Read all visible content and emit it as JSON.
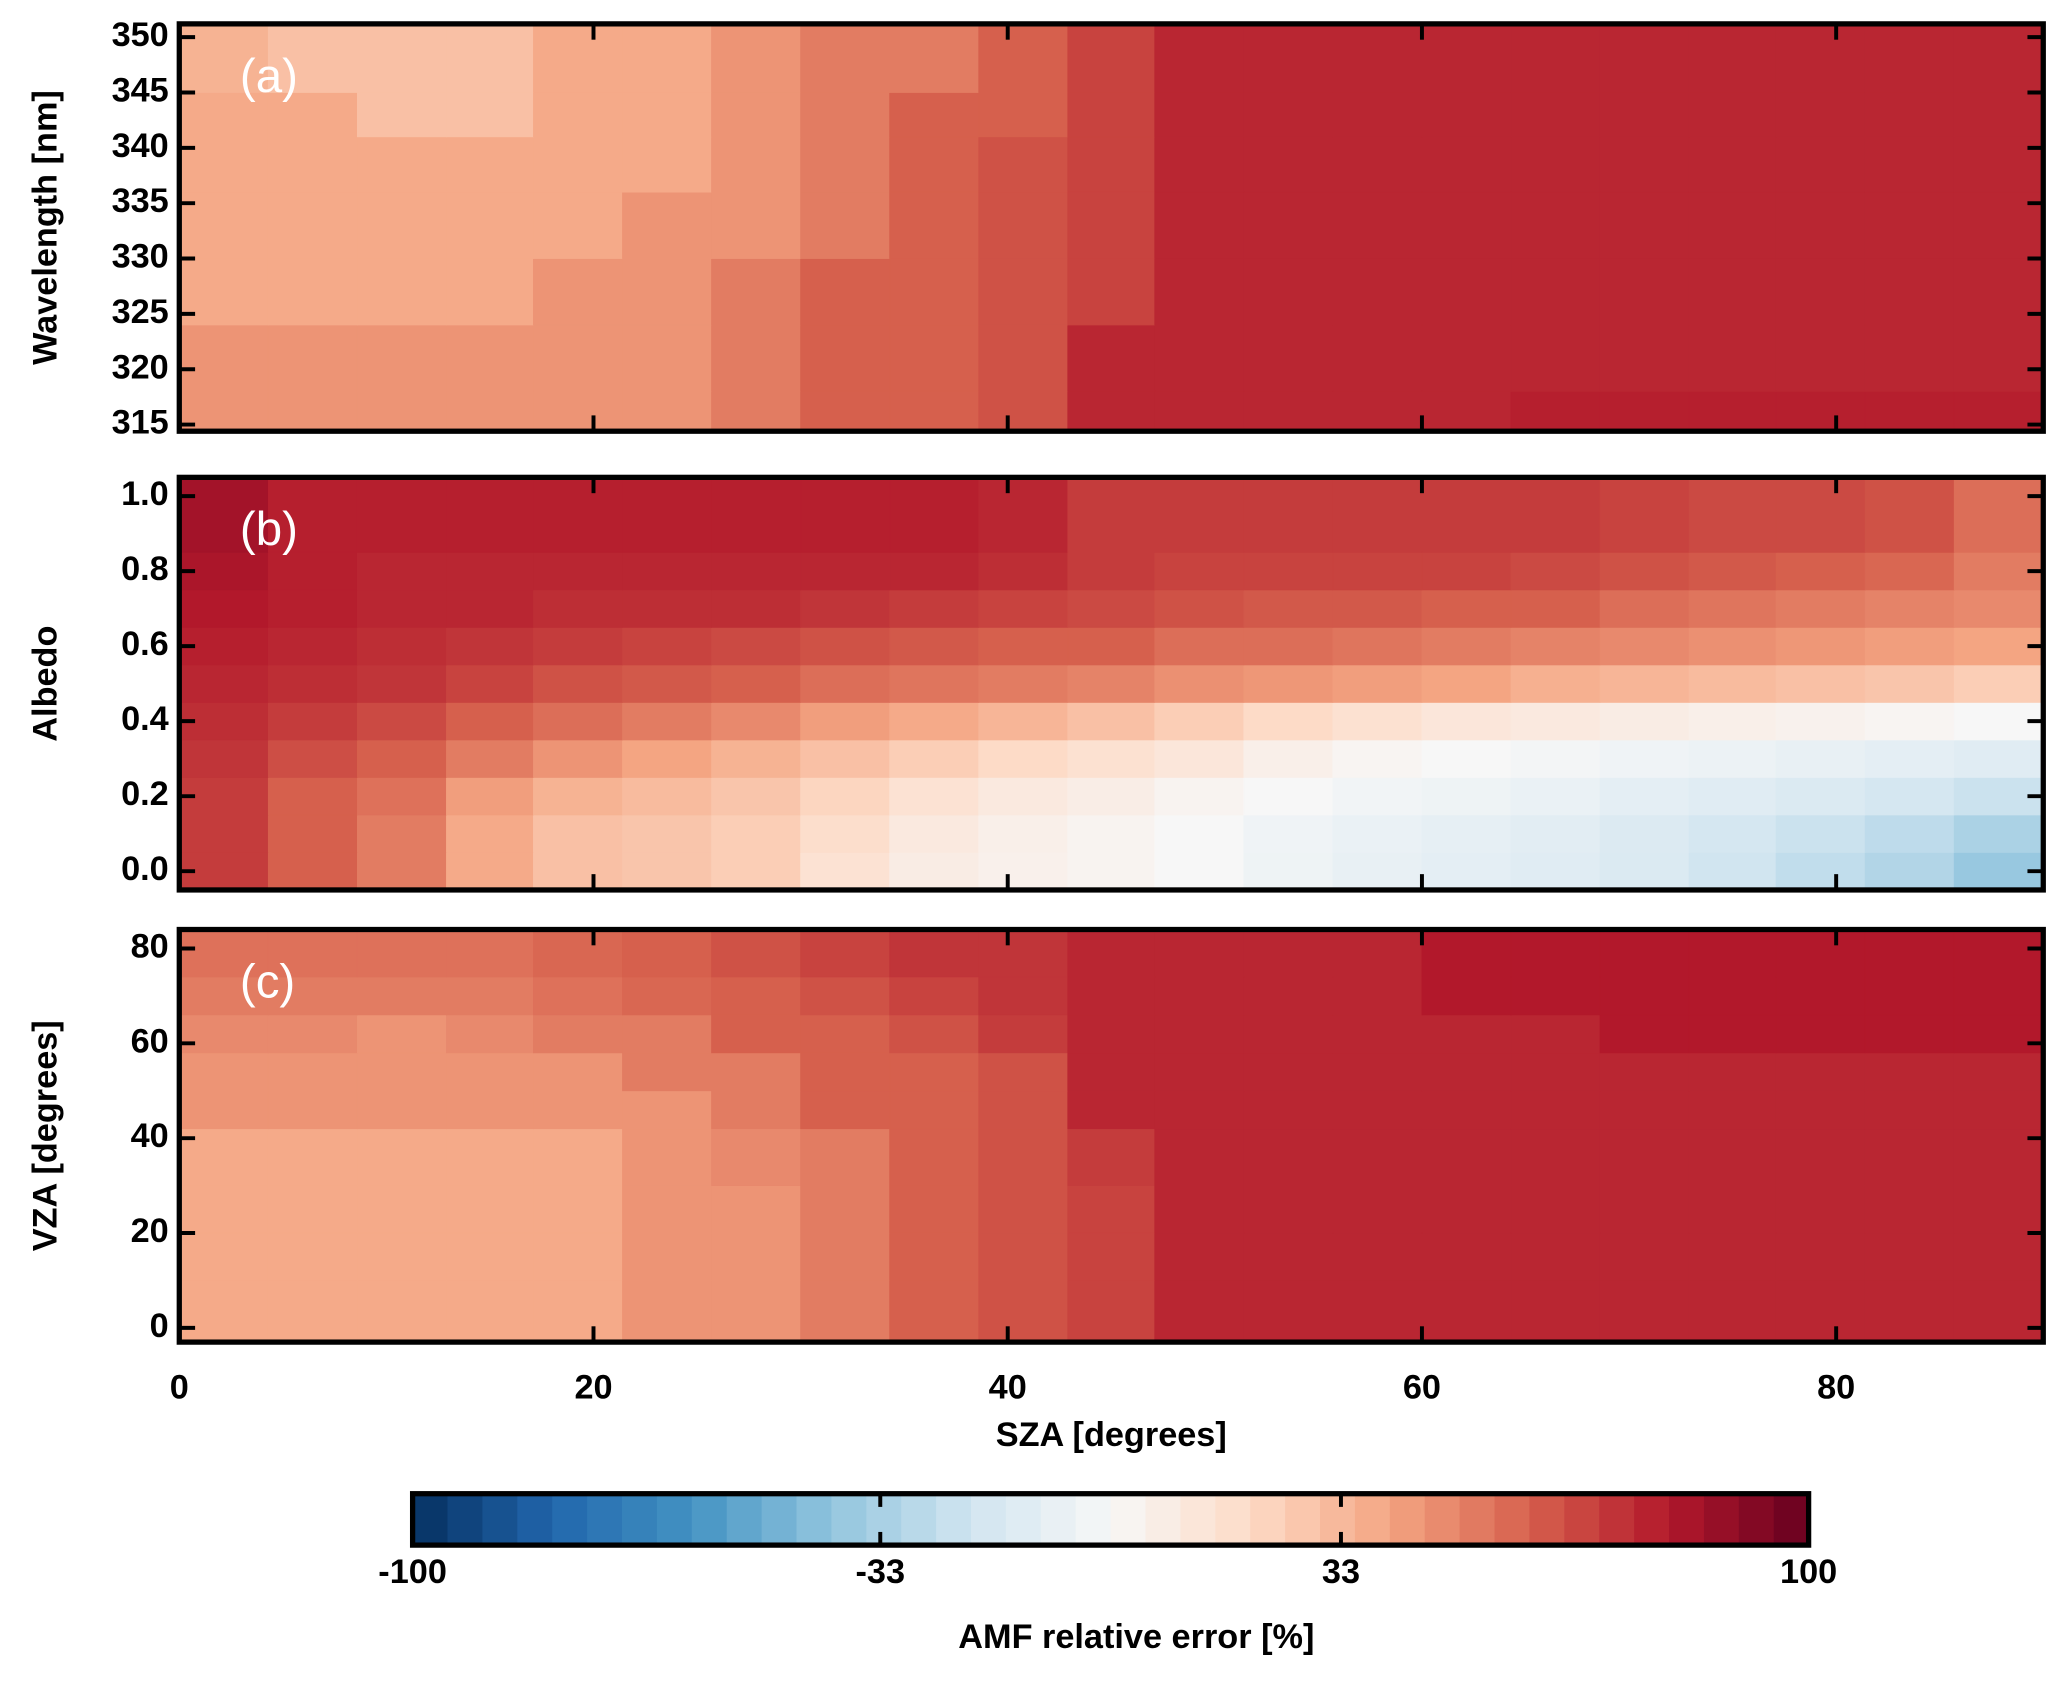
{
  "chart_data": [
    {
      "type": "heatmap",
      "panel_label": "(a)",
      "ylabel": "Wavelength [nm]",
      "xlim": [
        0,
        90
      ],
      "xticks": [
        0,
        20,
        40,
        60,
        80
      ],
      "ylim": [
        314.4,
        351.2
      ],
      "yticks": [
        315,
        320,
        325,
        330,
        335,
        340,
        345,
        350
      ],
      "x_edges": [
        0,
        4.3,
        8.6,
        12.9,
        17.1,
        21.4,
        25.7,
        30,
        34.3,
        38.6,
        42.9,
        47.1,
        51.4,
        55.7,
        60,
        64.3,
        68.6,
        72.9,
        77.1,
        81.4,
        85.7,
        90
      ],
      "y_edges": [
        314.4,
        318,
        324,
        330,
        336,
        341,
        345,
        351.2
      ],
      "z": [
        [
          45,
          45,
          45,
          45,
          45,
          45,
          52,
          60,
          60,
          64,
          76,
          76,
          76,
          76,
          76,
          78,
          78,
          78,
          78,
          78,
          78
        ],
        [
          45,
          45,
          45,
          45,
          45,
          45,
          52,
          60,
          60,
          64,
          76,
          76,
          76,
          76,
          76,
          76,
          76,
          76,
          76,
          76,
          76
        ],
        [
          38,
          38,
          38,
          38,
          45,
          45,
          52,
          60,
          60,
          64,
          68,
          76,
          76,
          76,
          76,
          76,
          76,
          76,
          76,
          76,
          76
        ],
        [
          38,
          38,
          38,
          38,
          38,
          45,
          45,
          52,
          60,
          64,
          68,
          76,
          76,
          76,
          76,
          76,
          76,
          76,
          76,
          76,
          76
        ],
        [
          38,
          38,
          38,
          38,
          38,
          38,
          45,
          52,
          60,
          64,
          68,
          76,
          76,
          76,
          76,
          76,
          76,
          76,
          76,
          76,
          76
        ],
        [
          38,
          38,
          30,
          30,
          38,
          38,
          45,
          52,
          60,
          60,
          68,
          76,
          76,
          76,
          76,
          76,
          76,
          76,
          76,
          76,
          76
        ],
        [
          35,
          30,
          30,
          30,
          38,
          38,
          45,
          52,
          52,
          60,
          68,
          76,
          76,
          76,
          76,
          76,
          76,
          76,
          76,
          76,
          76
        ]
      ]
    },
    {
      "type": "heatmap",
      "panel_label": "(b)",
      "ylabel": "Albedo",
      "xlim": [
        0,
        90
      ],
      "xticks": [
        0,
        20,
        40,
        60,
        80
      ],
      "ylim": [
        -0.05,
        1.05
      ],
      "yticks": [
        {
          "value": 0,
          "label": "0.0"
        },
        0.2,
        0.4,
        0.6,
        0.8,
        {
          "value": 1,
          "label": "1.0"
        }
      ],
      "x_edges": [
        0,
        4.3,
        8.6,
        12.9,
        17.1,
        21.4,
        25.7,
        30,
        34.3,
        38.6,
        42.9,
        47.1,
        51.4,
        55.7,
        60,
        64.3,
        68.6,
        72.9,
        77.1,
        81.4,
        85.7,
        90
      ],
      "y_edges": [
        -0.05,
        0.05,
        0.15,
        0.25,
        0.35,
        0.45,
        0.55,
        0.65,
        0.75,
        0.85,
        1.05
      ],
      "z": [
        [
          70,
          60,
          52,
          38,
          30,
          28,
          25,
          15,
          8,
          5,
          3,
          0,
          -5,
          -8,
          -10,
          -12,
          -15,
          -20,
          -25,
          -30,
          -38
        ],
        [
          70,
          60,
          52,
          38,
          30,
          28,
          25,
          18,
          10,
          6,
          3,
          0,
          -4,
          -7,
          -9,
          -11,
          -14,
          -18,
          -22,
          -26,
          -32
        ],
        [
          70,
          60,
          55,
          42,
          35,
          32,
          28,
          22,
          15,
          10,
          7,
          3,
          0,
          -3,
          -5,
          -7,
          -10,
          -12,
          -15,
          -18,
          -22
        ],
        [
          72,
          65,
          60,
          52,
          45,
          40,
          35,
          30,
          25,
          20,
          16,
          12,
          6,
          2,
          0,
          -2,
          -4,
          -6,
          -8,
          -10,
          -12
        ],
        [
          74,
          70,
          66,
          60,
          56,
          52,
          48,
          42,
          38,
          34,
          30,
          25,
          20,
          16,
          12,
          10,
          8,
          6,
          4,
          2,
          0
        ],
        [
          76,
          74,
          72,
          68,
          64,
          62,
          60,
          56,
          54,
          52,
          50,
          46,
          44,
          42,
          40,
          36,
          34,
          32,
          30,
          28,
          25
        ],
        [
          78,
          76,
          74,
          72,
          70,
          68,
          66,
          64,
          62,
          60,
          60,
          56,
          56,
          54,
          52,
          50,
          48,
          46,
          44,
          42,
          40
        ],
        [
          80,
          78,
          76,
          76,
          74,
          74,
          74,
          72,
          70,
          68,
          66,
          64,
          62,
          62,
          60,
          60,
          56,
          54,
          52,
          50,
          48
        ],
        [
          82,
          78,
          76,
          76,
          76,
          76,
          76,
          76,
          76,
          74,
          70,
          68,
          68,
          68,
          68,
          66,
          64,
          62,
          60,
          58,
          52
        ],
        [
          84,
          78,
          78,
          78,
          78,
          78,
          78,
          78,
          78,
          76,
          70,
          70,
          70,
          70,
          70,
          70,
          68,
          66,
          66,
          64,
          56
        ]
      ]
    },
    {
      "type": "heatmap",
      "panel_label": "(c)",
      "ylabel": "VZA [degrees]",
      "xlabel": "SZA [degrees]",
      "xlim": [
        0,
        90
      ],
      "xticks": [
        0,
        20,
        40,
        60,
        80
      ],
      "ylim": [
        -3,
        84
      ],
      "yticks": [
        0,
        20,
        40,
        60,
        80
      ],
      "x_edges": [
        0,
        4.3,
        8.6,
        12.9,
        17.1,
        21.4,
        25.7,
        30,
        34.3,
        38.6,
        42.9,
        47.1,
        51.4,
        55.7,
        60,
        64.3,
        68.6,
        72.9,
        77.1,
        81.4,
        85.7,
        90
      ],
      "y_edges": [
        -3,
        10,
        20,
        30,
        42,
        50,
        58,
        66,
        74,
        84
      ],
      "z": [
        [
          38,
          38,
          38,
          38,
          38,
          45,
          45,
          52,
          60,
          64,
          68,
          76,
          76,
          76,
          76,
          76,
          76,
          76,
          76,
          76,
          76
        ],
        [
          38,
          38,
          38,
          38,
          38,
          45,
          45,
          52,
          60,
          64,
          68,
          76,
          76,
          76,
          76,
          76,
          76,
          76,
          76,
          76,
          76
        ],
        [
          38,
          38,
          38,
          38,
          38,
          45,
          45,
          52,
          60,
          64,
          68,
          76,
          76,
          76,
          76,
          76,
          76,
          76,
          76,
          76,
          76
        ],
        [
          38,
          38,
          38,
          38,
          38,
          45,
          48,
          52,
          60,
          64,
          70,
          76,
          76,
          76,
          76,
          76,
          76,
          76,
          76,
          76,
          76
        ],
        [
          45,
          45,
          45,
          45,
          45,
          45,
          52,
          60,
          60,
          64,
          76,
          76,
          76,
          76,
          76,
          76,
          76,
          76,
          76,
          76,
          76
        ],
        [
          45,
          45,
          45,
          45,
          45,
          52,
          52,
          60,
          60,
          64,
          76,
          76,
          76,
          76,
          76,
          76,
          76,
          76,
          76,
          76,
          76
        ],
        [
          48,
          48,
          45,
          48,
          52,
          52,
          60,
          60,
          64,
          70,
          76,
          76,
          76,
          76,
          76,
          76,
          80,
          80,
          80,
          80,
          80
        ],
        [
          52,
          52,
          52,
          52,
          55,
          58,
          60,
          64,
          68,
          72,
          76,
          76,
          76,
          76,
          80,
          80,
          80,
          80,
          80,
          80,
          80
        ],
        [
          55,
          55,
          55,
          55,
          58,
          60,
          64,
          68,
          72,
          72,
          76,
          76,
          76,
          76,
          80,
          80,
          80,
          80,
          80,
          80,
          80
        ]
      ]
    }
  ],
  "colorbar": {
    "label": "AMF relative error [%]",
    "clim": [
      -100,
      100
    ],
    "ticks": [
      -100,
      -33,
      33,
      100
    ],
    "colormap": [
      "#053061",
      "#2166ac",
      "#4393c3",
      "#92c5de",
      "#d1e5f0",
      "#f7f7f7",
      "#fddbc7",
      "#f4a582",
      "#d6604d",
      "#b2182b",
      "#67001f"
    ]
  }
}
